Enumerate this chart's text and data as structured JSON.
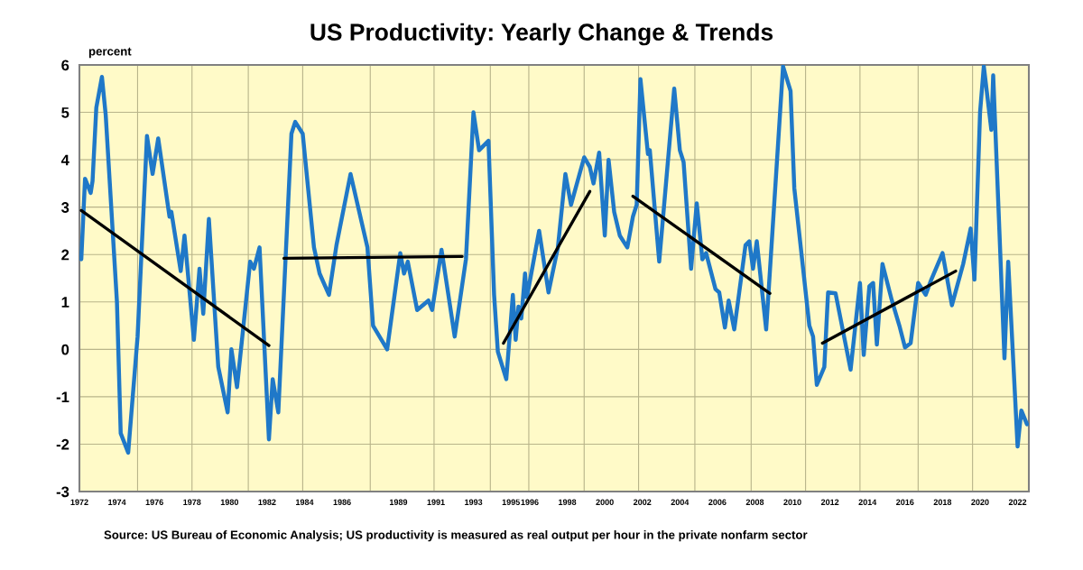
{
  "chart_data": {
    "type": "line",
    "title": "US Productivity: Yearly Change & Trends",
    "ylabel": "percent",
    "xlim": [
      1972,
      2022.6
    ],
    "ylim": [
      -3,
      6
    ],
    "yticks": [
      -3,
      -2,
      -1,
      0,
      1,
      2,
      3,
      4,
      5,
      6
    ],
    "xticks": [
      {
        "value": 1972,
        "label": "1972"
      },
      {
        "value": 1974,
        "label": "1974"
      },
      {
        "value": 1976,
        "label": "1976"
      },
      {
        "value": 1978,
        "label": "1978"
      },
      {
        "value": 1980,
        "label": "1980"
      },
      {
        "value": 1982,
        "label": "1982"
      },
      {
        "value": 1984,
        "label": "1984"
      },
      {
        "value": 1986,
        "label": "1986"
      },
      {
        "value": 1989,
        "label": "1989"
      },
      {
        "value": 1991,
        "label": "1991"
      },
      {
        "value": 1993,
        "label": "1993"
      },
      {
        "value": 1995,
        "label": "1995"
      },
      {
        "value": 1996,
        "label": "1996"
      },
      {
        "value": 1998,
        "label": "1998"
      },
      {
        "value": 2000,
        "label": "2000"
      },
      {
        "value": 2002,
        "label": "2002"
      },
      {
        "value": 2004,
        "label": "2004"
      },
      {
        "value": 2006,
        "label": "2006"
      },
      {
        "value": 2008,
        "label": "2008"
      },
      {
        "value": 2010,
        "label": "2010"
      },
      {
        "value": 2012,
        "label": "2012"
      },
      {
        "value": 2014,
        "label": "2014"
      },
      {
        "value": 2016,
        "label": "2016"
      },
      {
        "value": 2018,
        "label": "2018"
      },
      {
        "value": 2020,
        "label": "2020"
      },
      {
        "value": 2022,
        "label": "2022"
      },
      {
        "value": 1975.1,
        "label": null
      },
      {
        "value": 1978.0,
        "label": null
      },
      {
        "value": 1981.0,
        "label": null
      },
      {
        "value": 1983.9,
        "label": null
      },
      {
        "value": 1987.5,
        "label": null
      },
      {
        "value": 1990.9,
        "label": null
      },
      {
        "value": 1993.9,
        "label": null
      },
      {
        "value": 1995.95,
        "label": null
      },
      {
        "value": 1998.9,
        "label": null
      },
      {
        "value": 2001.8,
        "label": null
      },
      {
        "value": 2004.8,
        "label": null
      },
      {
        "value": 2007.8,
        "label": null
      },
      {
        "value": 2010.7,
        "label": null
      },
      {
        "value": 2013.6,
        "label": null
      },
      {
        "value": 2016.7,
        "label": null
      },
      {
        "value": 2019.6,
        "label": null
      }
    ],
    "grid": true,
    "marker": "none",
    "line_style": "solid",
    "series": [
      {
        "type": "line",
        "color": "#1f78c8",
        "x": [
          1972.1,
          1972.3,
          1972.6,
          1972.7,
          1972.9,
          1973.2,
          1973.4,
          1974.0,
          1974.2,
          1974.6,
          1975.1,
          1975.6,
          1975.9,
          1976.2,
          1976.8,
          1976.9,
          1977.4,
          1977.6,
          1978.1,
          1978.4,
          1978.6,
          1978.9,
          1979.4,
          1979.9,
          1980.1,
          1980.4,
          1981.1,
          1981.3,
          1981.6,
          1982.1,
          1982.3,
          1982.6,
          1983.3,
          1983.5,
          1983.9,
          1984.5,
          1984.8,
          1985.3,
          1985.7,
          1986.45,
          1987.35,
          1987.65,
          1988.4,
          1989.1,
          1989.3,
          1989.5,
          1990.0,
          1990.6,
          1990.8,
          1991.3,
          1992.0,
          1992.6,
          1993.0,
          1993.3,
          1993.8,
          1994.1,
          1994.3,
          1994.75,
          1995.1,
          1995.25,
          1995.4,
          1995.55,
          1995.75,
          1995.85,
          1996.5,
          1997.0,
          1997.5,
          1997.9,
          1998.2,
          1998.9,
          1999.2,
          1999.4,
          1999.7,
          2000.0,
          2000.2,
          2000.5,
          2000.8,
          2001.2,
          2001.5,
          2001.7,
          2001.9,
          2002.3,
          2002.4,
          2002.9,
          2003.7,
          2004.0,
          2004.2,
          2004.6,
          2004.9,
          2005.2,
          2005.4,
          2005.9,
          2006.1,
          2006.4,
          2006.6,
          2006.9,
          2007.5,
          2007.7,
          2007.9,
          2008.1,
          2008.6,
          2009.5,
          2009.9,
          2010.1,
          2010.9,
          2011.1,
          2011.3,
          2011.7,
          2011.9,
          2012.3,
          2013.1,
          2013.6,
          2013.8,
          2014.1,
          2014.3,
          2014.5,
          2014.8,
          2015.3,
          2015.7,
          2016.0,
          2016.3,
          2016.7,
          2017.1,
          2017.4,
          2018.0,
          2018.5,
          2019.1,
          2019.5,
          2019.7,
          2020.0,
          2020.2,
          2020.6,
          2020.7,
          2021.3,
          2021.5,
          2022.0,
          2022.2,
          2022.5
        ],
        "values": [
          1.9,
          3.6,
          3.3,
          3.55,
          5.1,
          5.75,
          4.95,
          1.0,
          -1.77,
          -2.18,
          0.27,
          4.5,
          3.7,
          4.45,
          2.8,
          2.9,
          1.65,
          2.4,
          0.2,
          1.7,
          0.75,
          2.75,
          -0.37,
          -1.33,
          0.0,
          -0.8,
          1.85,
          1.7,
          2.15,
          -1.9,
          -0.63,
          -1.33,
          4.55,
          4.8,
          4.55,
          2.15,
          1.6,
          1.15,
          2.2,
          3.7,
          2.15,
          0.5,
          0.0,
          2.03,
          1.6,
          1.85,
          0.83,
          1.03,
          0.83,
          2.1,
          0.27,
          1.9,
          5.0,
          4.2,
          4.4,
          1.15,
          -0.05,
          -0.63,
          1.15,
          0.2,
          0.9,
          0.65,
          1.6,
          1.1,
          2.5,
          1.2,
          2.15,
          3.7,
          3.05,
          4.05,
          3.85,
          3.5,
          4.15,
          2.4,
          4.0,
          2.9,
          2.4,
          2.15,
          2.8,
          3.05,
          5.7,
          4.12,
          4.2,
          1.85,
          5.5,
          4.2,
          3.95,
          1.7,
          3.08,
          1.9,
          2.03,
          1.27,
          1.2,
          0.46,
          1.03,
          0.42,
          2.2,
          2.28,
          1.7,
          2.28,
          0.42,
          5.97,
          5.45,
          3.4,
          0.5,
          0.27,
          -0.75,
          -0.37,
          1.2,
          1.18,
          -0.43,
          1.4,
          -0.12,
          1.33,
          1.4,
          0.1,
          1.8,
          1.03,
          0.5,
          0.04,
          0.13,
          1.4,
          1.15,
          1.47,
          2.03,
          0.93,
          1.8,
          2.55,
          1.47,
          5.0,
          5.97,
          4.63,
          5.78,
          -0.19,
          1.85,
          -2.05,
          -1.29,
          -1.58
        ]
      },
      {
        "type": "line",
        "color": "#000000",
        "x": [
          1972.1,
          1982.1
        ],
        "values": [
          2.93,
          0.08
        ]
      },
      {
        "type": "line",
        "color": "#000000",
        "x": [
          1982.9,
          1992.4
        ],
        "values": [
          1.92,
          1.96
        ]
      },
      {
        "type": "line",
        "color": "#000000",
        "x": [
          1994.6,
          1999.2
        ],
        "values": [
          0.13,
          3.33
        ]
      },
      {
        "type": "line",
        "color": "#000000",
        "x": [
          2001.5,
          2008.8
        ],
        "values": [
          3.23,
          1.18
        ]
      },
      {
        "type": "line",
        "color": "#000000",
        "x": [
          2011.6,
          2018.7
        ],
        "values": [
          0.13,
          1.65
        ]
      }
    ],
    "annotations": [
      "Source: US Bureau of Economic Analysis; US productivity is measured as real output per hour in the private nonfarm sector"
    ]
  }
}
